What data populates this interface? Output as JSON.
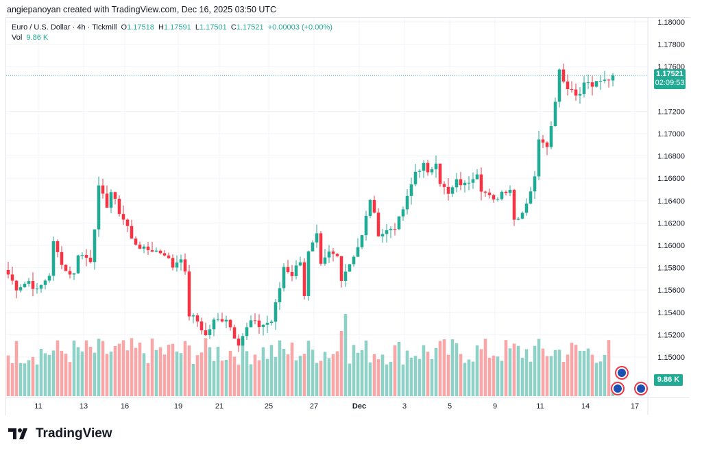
{
  "credit": "angiepanoyan created with TradingView.com, Dec 16, 2025 03:50 UTC",
  "legend": {
    "symbol": "Euro / U.S. Dollar · 4h · Tickmill",
    "o_label": "O",
    "o": "1.17518",
    "h_label": "H",
    "h": "1.17591",
    "l_label": "L",
    "l": "1.17501",
    "c_label": "C",
    "c": "1.17521",
    "change": "+0.00003 (+0.00%)",
    "vol_label": "Vol",
    "vol": "9.86 K"
  },
  "price_tag": {
    "price": "1.17521",
    "countdown": "02:09:53"
  },
  "volume_tag": "9.86 K",
  "footer": {
    "brand": "TradingView"
  },
  "colors": {
    "up": "#22ab94",
    "down": "#f23645",
    "up_vol": "#8fd1c6",
    "down_vol": "#f7a7a8"
  },
  "chart_data": {
    "type": "candlestick",
    "title": "Euro / U.S. Dollar · 4h · Tickmill",
    "ylim": [
      1.1475,
      1.1805
    ],
    "y_ticks": [
      "1.18000",
      "1.17800",
      "1.17600",
      "1.17200",
      "1.17000",
      "1.16800",
      "1.16600",
      "1.16400",
      "1.16200",
      "1.16000",
      "1.15800",
      "1.15600",
      "1.15400",
      "1.15200",
      "1.15000"
    ],
    "y_tick_values": [
      1.18,
      1.178,
      1.176,
      1.172,
      1.17,
      1.168,
      1.166,
      1.164,
      1.162,
      1.16,
      1.158,
      1.156,
      1.154,
      1.152,
      1.15
    ],
    "x_ticks": [
      {
        "label": "11",
        "bar": 8
      },
      {
        "label": "13",
        "bar": 19
      },
      {
        "label": "16",
        "bar": 29
      },
      {
        "label": "19",
        "bar": 42
      },
      {
        "label": "21",
        "bar": 52
      },
      {
        "label": "25",
        "bar": 64
      },
      {
        "label": "27",
        "bar": 75
      },
      {
        "label": "Dec",
        "bar": 86
      },
      {
        "label": "3",
        "bar": 97
      },
      {
        "label": "5",
        "bar": 108
      },
      {
        "label": "9",
        "bar": 119
      },
      {
        "label": "11",
        "bar": 130
      },
      {
        "label": "14",
        "bar": 141
      },
      {
        "label": "17",
        "bar": 153
      }
    ],
    "bar_count": 148,
    "close_anchors": [
      [
        0,
        1.1574
      ],
      [
        2,
        1.1562
      ],
      [
        5,
        1.1568
      ],
      [
        7,
        1.1559
      ],
      [
        10,
        1.1574
      ],
      [
        11,
        1.1602
      ],
      [
        12,
        1.1593
      ],
      [
        14,
        1.1577
      ],
      [
        16,
        1.1574
      ],
      [
        17,
        1.1593
      ],
      [
        20,
        1.1587
      ],
      [
        21,
        1.1617
      ],
      [
        22,
        1.1651
      ],
      [
        24,
        1.1636
      ],
      [
        25,
        1.1648
      ],
      [
        27,
        1.163
      ],
      [
        29,
        1.1617
      ],
      [
        30,
        1.1605
      ],
      [
        33,
        1.1596
      ],
      [
        35,
        1.1596
      ],
      [
        38,
        1.1593
      ],
      [
        40,
        1.1581
      ],
      [
        42,
        1.159
      ],
      [
        43,
        1.1574
      ],
      [
        44,
        1.1538
      ],
      [
        46,
        1.1532
      ],
      [
        48,
        1.1519
      ],
      [
        50,
        1.1532
      ],
      [
        53,
        1.1535
      ],
      [
        55,
        1.1519
      ],
      [
        56,
        1.1513
      ],
      [
        59,
        1.1532
      ],
      [
        61,
        1.1528
      ],
      [
        64,
        1.1532
      ],
      [
        66,
        1.1562
      ],
      [
        67,
        1.1581
      ],
      [
        69,
        1.1574
      ],
      [
        71,
        1.1587
      ],
      [
        72,
        1.1556
      ],
      [
        73,
        1.1593
      ],
      [
        75,
        1.1608
      ],
      [
        76,
        1.1581
      ],
      [
        78,
        1.1593
      ],
      [
        80,
        1.159
      ],
      [
        81,
        1.1571
      ],
      [
        83,
        1.1584
      ],
      [
        85,
        1.1599
      ],
      [
        86,
        1.1608
      ],
      [
        88,
        1.1642
      ],
      [
        90,
        1.1611
      ],
      [
        91,
        1.1611
      ],
      [
        94,
        1.1617
      ],
      [
        95,
        1.1623
      ],
      [
        97,
        1.1642
      ],
      [
        99,
        1.1666
      ],
      [
        101,
        1.1672
      ],
      [
        102,
        1.1663
      ],
      [
        104,
        1.1676
      ],
      [
        105,
        1.1657
      ],
      [
        107,
        1.1645
      ],
      [
        109,
        1.1657
      ],
      [
        111,
        1.1654
      ],
      [
        114,
        1.1666
      ],
      [
        115,
        1.1651
      ],
      [
        118,
        1.1639
      ],
      [
        120,
        1.1648
      ],
      [
        122,
        1.1651
      ],
      [
        123,
        1.1623
      ],
      [
        125,
        1.163
      ],
      [
        126,
        1.1639
      ],
      [
        128,
        1.166
      ],
      [
        129,
        1.1697
      ],
      [
        131,
        1.1691
      ],
      [
        132,
        1.1706
      ],
      [
        133,
        1.1731
      ],
      [
        134,
        1.1758
      ],
      [
        136,
        1.174
      ],
      [
        137,
        1.174
      ],
      [
        139,
        1.1734
      ],
      [
        140,
        1.1746
      ],
      [
        142,
        1.1743
      ],
      [
        144,
        1.1746
      ],
      [
        146,
        1.1749
      ],
      [
        147,
        1.17521
      ]
    ],
    "volume_peak_bar": 82,
    "last_volume": "9.86 K"
  }
}
